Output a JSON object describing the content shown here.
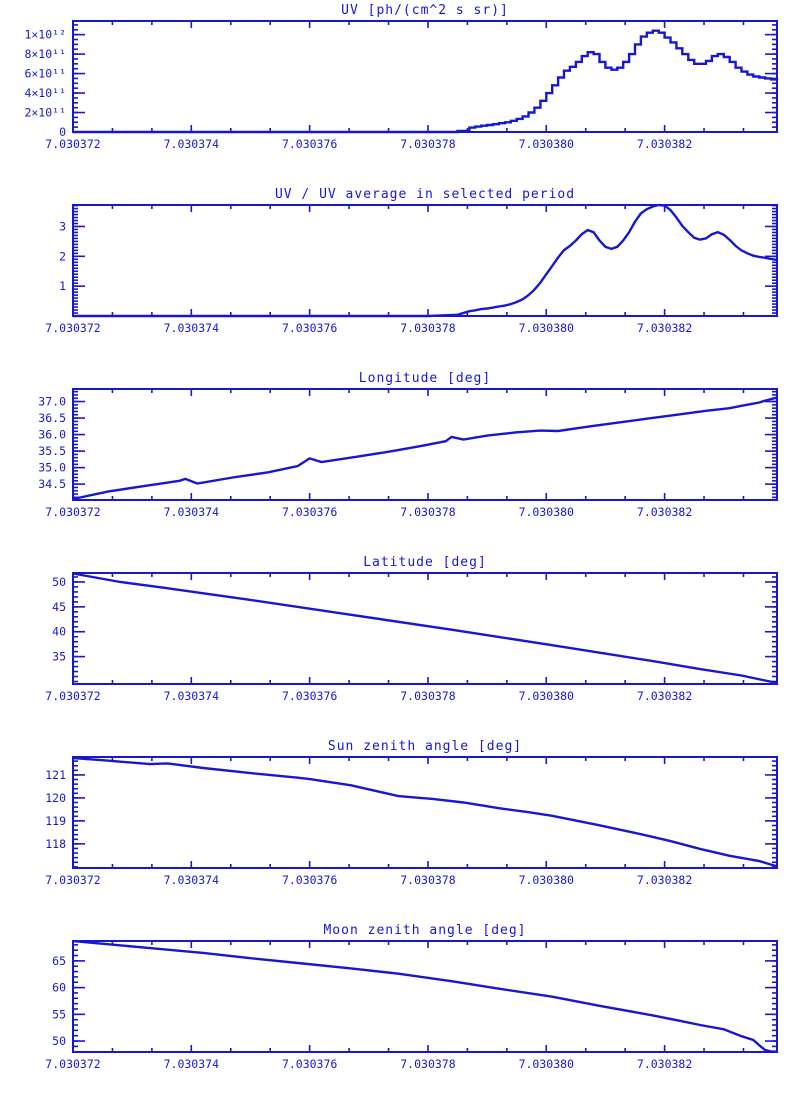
{
  "page": {
    "accent_color": "#1717d2",
    "background_color": "#ffffff"
  },
  "chart_data": {
    "type": "line",
    "accent_color": "#1717d2",
    "grid": false,
    "legend": "none",
    "x_axis": {
      "range": [
        7.030372,
        7.0303839
      ],
      "major_step": 2e-06,
      "minor_per_major": 3,
      "ticks": [
        {
          "v": 7.030372,
          "label": "7.030372"
        },
        {
          "v": 7.030374,
          "label": "7.030374"
        },
        {
          "v": 7.030376,
          "label": "7.030376"
        },
        {
          "v": 7.030378,
          "label": "7.030378"
        },
        {
          "v": 7.03038,
          "label": "7.030380"
        },
        {
          "v": 7.030382,
          "label": "7.030382"
        }
      ]
    },
    "charts": [
      {
        "id": "uv",
        "title": "UV [ph/(cm^2 s sr)]",
        "type": "step",
        "y_range": [
          0,
          1140000000000.0
        ],
        "y_minor_step": 50000000000.0,
        "y_ticks": [
          {
            "v": 0,
            "label": "0"
          },
          {
            "v": 200000000000.0,
            "label": "2×10¹¹"
          },
          {
            "v": 400000000000.0,
            "label": "4×10¹¹"
          },
          {
            "v": 600000000000.0,
            "label": "6×10¹¹"
          },
          {
            "v": 800000000000.0,
            "label": "8×10¹¹"
          },
          {
            "v": 1000000000000.0,
            "label": "1×10¹²"
          }
        ],
        "series": [
          [
            7.030372,
            0
          ],
          [
            7.030378,
            0
          ],
          [
            7.0303785,
            10000000000.0
          ],
          [
            7.0303787,
            45000000000.0
          ],
          [
            7.0303788,
            55000000000.0
          ],
          [
            7.0303789,
            65000000000.0
          ],
          [
            7.030379,
            72000000000.0
          ],
          [
            7.0303791,
            80000000000.0
          ],
          [
            7.0303792,
            90000000000.0
          ],
          [
            7.0303793,
            100000000000.0
          ],
          [
            7.0303794,
            115000000000.0
          ],
          [
            7.0303795,
            135000000000.0
          ],
          [
            7.0303796,
            160000000000.0
          ],
          [
            7.0303797,
            200000000000.0
          ],
          [
            7.0303798,
            250000000000.0
          ],
          [
            7.0303799,
            320000000000.0
          ],
          [
            7.03038,
            400000000000.0
          ],
          [
            7.0303801,
            480000000000.0
          ],
          [
            7.0303802,
            560000000000.0
          ],
          [
            7.0303803,
            630000000000.0
          ],
          [
            7.0303804,
            670000000000.0
          ],
          [
            7.0303805,
            720000000000.0
          ],
          [
            7.0303806,
            780000000000.0
          ],
          [
            7.0303807,
            820000000000.0
          ],
          [
            7.0303808,
            800000000000.0
          ],
          [
            7.0303809,
            720000000000.0
          ],
          [
            7.030381,
            660000000000.0
          ],
          [
            7.0303811,
            640000000000.0
          ],
          [
            7.0303812,
            660000000000.0
          ],
          [
            7.0303813,
            720000000000.0
          ],
          [
            7.0303814,
            800000000000.0
          ],
          [
            7.0303815,
            900000000000.0
          ],
          [
            7.0303816,
            980000000000.0
          ],
          [
            7.0303817,
            1020000000000.0
          ],
          [
            7.0303818,
            1040000000000.0
          ],
          [
            7.0303819,
            1020000000000.0
          ],
          [
            7.030382,
            970000000000.0
          ],
          [
            7.0303821,
            920000000000.0
          ],
          [
            7.0303822,
            860000000000.0
          ],
          [
            7.0303823,
            800000000000.0
          ],
          [
            7.0303824,
            740000000000.0
          ],
          [
            7.0303825,
            700000000000.0
          ],
          [
            7.0303826,
            700000000000.0
          ],
          [
            7.0303827,
            730000000000.0
          ],
          [
            7.0303828,
            780000000000.0
          ],
          [
            7.0303829,
            800000000000.0
          ],
          [
            7.030383,
            770000000000.0
          ],
          [
            7.0303831,
            720000000000.0
          ],
          [
            7.0303832,
            660000000000.0
          ],
          [
            7.0303833,
            620000000000.0
          ],
          [
            7.0303834,
            590000000000.0
          ],
          [
            7.0303835,
            570000000000.0
          ],
          [
            7.0303836,
            560000000000.0
          ],
          [
            7.0303837,
            550000000000.0
          ],
          [
            7.0303838,
            540000000000.0
          ],
          [
            7.0303839,
            530000000000.0
          ]
        ]
      },
      {
        "id": "uv-ratio",
        "title": "UV / UV average in selected period",
        "type": "line",
        "y_range": [
          0,
          3.72
        ],
        "y_minor_step": 0.1,
        "y_ticks": [
          {
            "v": 1,
            "label": "1"
          },
          {
            "v": 2,
            "label": "2"
          },
          {
            "v": 3,
            "label": "3"
          }
        ],
        "series": [
          [
            7.030372,
            0
          ],
          [
            7.030378,
            0
          ],
          [
            7.0303785,
            0.04
          ],
          [
            7.0303787,
            0.16
          ],
          [
            7.0303788,
            0.19
          ],
          [
            7.0303789,
            0.23
          ],
          [
            7.030379,
            0.25
          ],
          [
            7.0303791,
            0.28
          ],
          [
            7.0303792,
            0.32
          ],
          [
            7.0303793,
            0.35
          ],
          [
            7.0303794,
            0.4
          ],
          [
            7.0303795,
            0.47
          ],
          [
            7.0303796,
            0.56
          ],
          [
            7.0303797,
            0.7
          ],
          [
            7.0303798,
            0.88
          ],
          [
            7.0303799,
            1.12
          ],
          [
            7.03038,
            1.4
          ],
          [
            7.0303801,
            1.68
          ],
          [
            7.0303802,
            1.96
          ],
          [
            7.0303803,
            2.21
          ],
          [
            7.0303804,
            2.35
          ],
          [
            7.0303805,
            2.53
          ],
          [
            7.0303806,
            2.74
          ],
          [
            7.0303807,
            2.88
          ],
          [
            7.0303808,
            2.81
          ],
          [
            7.0303809,
            2.53
          ],
          [
            7.030381,
            2.32
          ],
          [
            7.0303811,
            2.25
          ],
          [
            7.0303812,
            2.32
          ],
          [
            7.0303813,
            2.53
          ],
          [
            7.0303814,
            2.81
          ],
          [
            7.0303815,
            3.16
          ],
          [
            7.0303816,
            3.44
          ],
          [
            7.0303817,
            3.58
          ],
          [
            7.0303818,
            3.67
          ],
          [
            7.0303819,
            3.72
          ],
          [
            7.030382,
            3.7
          ],
          [
            7.0303821,
            3.55
          ],
          [
            7.0303822,
            3.3
          ],
          [
            7.0303823,
            3.02
          ],
          [
            7.0303824,
            2.81
          ],
          [
            7.0303825,
            2.62
          ],
          [
            7.0303826,
            2.56
          ],
          [
            7.0303827,
            2.6
          ],
          [
            7.0303828,
            2.74
          ],
          [
            7.0303829,
            2.81
          ],
          [
            7.030383,
            2.72
          ],
          [
            7.0303831,
            2.55
          ],
          [
            7.0303832,
            2.35
          ],
          [
            7.0303833,
            2.2
          ],
          [
            7.0303834,
            2.1
          ],
          [
            7.0303835,
            2.02
          ],
          [
            7.0303836,
            1.98
          ],
          [
            7.0303837,
            1.95
          ],
          [
            7.0303838,
            1.91
          ],
          [
            7.0303839,
            1.88
          ]
        ]
      },
      {
        "id": "longitude",
        "title": "Longitude [deg]",
        "type": "line",
        "y_range": [
          34.02,
          37.38
        ],
        "y_minor_step": 0.1,
        "y_ticks": [
          {
            "v": 34.5,
            "label": "34.5"
          },
          {
            "v": 35.0,
            "label": "35.0"
          },
          {
            "v": 35.5,
            "label": "35.5"
          },
          {
            "v": 36.0,
            "label": "36.0"
          },
          {
            "v": 36.5,
            "label": "36.5"
          },
          {
            "v": 37.0,
            "label": "37.0"
          }
        ],
        "series": [
          [
            7.030372,
            34.05
          ],
          [
            7.0303726,
            34.28
          ],
          [
            7.0303732,
            34.44
          ],
          [
            7.0303738,
            34.6
          ],
          [
            7.0303739,
            34.66
          ],
          [
            7.0303741,
            34.52
          ],
          [
            7.0303747,
            34.7
          ],
          [
            7.0303753,
            34.86
          ],
          [
            7.0303758,
            35.05
          ],
          [
            7.030376,
            35.28
          ],
          [
            7.0303762,
            35.17
          ],
          [
            7.0303768,
            35.33
          ],
          [
            7.0303774,
            35.5
          ],
          [
            7.0303779,
            35.66
          ],
          [
            7.0303783,
            35.8
          ],
          [
            7.0303784,
            35.93
          ],
          [
            7.0303786,
            35.85
          ],
          [
            7.030379,
            35.97
          ],
          [
            7.0303795,
            36.07
          ],
          [
            7.0303799,
            36.12
          ],
          [
            7.0303802,
            36.11
          ],
          [
            7.0303807,
            36.24
          ],
          [
            7.0303812,
            36.36
          ],
          [
            7.0303817,
            36.48
          ],
          [
            7.0303822,
            36.6
          ],
          [
            7.0303827,
            36.72
          ],
          [
            7.0303831,
            36.8
          ],
          [
            7.0303833,
            36.87
          ],
          [
            7.0303836,
            36.97
          ],
          [
            7.0303837,
            37.03
          ],
          [
            7.0303839,
            37.12
          ]
        ]
      },
      {
        "id": "latitude",
        "title": "Latitude [deg]",
        "type": "line",
        "y_range": [
          29.5,
          51.8
        ],
        "y_minor_step": 1,
        "y_ticks": [
          {
            "v": 35,
            "label": "35"
          },
          {
            "v": 40,
            "label": "40"
          },
          {
            "v": 45,
            "label": "45"
          },
          {
            "v": 50,
            "label": "50"
          }
        ],
        "series": [
          [
            7.030372,
            51.7
          ],
          [
            7.0303728,
            50.0
          ],
          [
            7.0303735,
            48.9
          ],
          [
            7.030375,
            46.4
          ],
          [
            7.0303767,
            43.4
          ],
          [
            7.0303784,
            40.4
          ],
          [
            7.0303801,
            37.3
          ],
          [
            7.0303818,
            34.1
          ],
          [
            7.0303826,
            32.5
          ],
          [
            7.0303833,
            31.2
          ],
          [
            7.0303839,
            29.7
          ]
        ]
      },
      {
        "id": "sun-zenith",
        "title": "Sun zenith angle [deg]",
        "type": "line",
        "y_range": [
          116.95,
          121.78
        ],
        "y_minor_step": 0.2,
        "y_ticks": [
          {
            "v": 118,
            "label": "118"
          },
          {
            "v": 119,
            "label": "119"
          },
          {
            "v": 120,
            "label": "120"
          },
          {
            "v": 121,
            "label": "121"
          }
        ],
        "series": [
          [
            7.030372,
            121.73
          ],
          [
            7.0303725,
            121.64
          ],
          [
            7.0303733,
            121.47
          ],
          [
            7.0303736,
            121.5
          ],
          [
            7.0303742,
            121.3
          ],
          [
            7.030375,
            121.08
          ],
          [
            7.0303758,
            120.88
          ],
          [
            7.030376,
            120.82
          ],
          [
            7.0303767,
            120.55
          ],
          [
            7.0303775,
            120.08
          ],
          [
            7.0303781,
            119.95
          ],
          [
            7.0303786,
            119.8
          ],
          [
            7.0303792,
            119.55
          ],
          [
            7.0303797,
            119.38
          ],
          [
            7.0303801,
            119.22
          ],
          [
            7.0303809,
            118.81
          ],
          [
            7.0303816,
            118.42
          ],
          [
            7.0303821,
            118.12
          ],
          [
            7.0303826,
            117.78
          ],
          [
            7.0303831,
            117.48
          ],
          [
            7.0303836,
            117.25
          ],
          [
            7.0303839,
            117.02
          ]
        ]
      },
      {
        "id": "moon-zenith",
        "title": "Moon zenith angle [deg]",
        "type": "line",
        "y_range": [
          47.95,
          68.72
        ],
        "y_minor_step": 1,
        "y_ticks": [
          {
            "v": 50,
            "label": "50"
          },
          {
            "v": 55,
            "label": "55"
          },
          {
            "v": 60,
            "label": "60"
          },
          {
            "v": 65,
            "label": "65"
          }
        ],
        "series": [
          [
            7.030372,
            68.7
          ],
          [
            7.0303733,
            67.4
          ],
          [
            7.0303742,
            66.5
          ],
          [
            7.030375,
            65.5
          ],
          [
            7.0303758,
            64.6
          ],
          [
            7.0303767,
            63.6
          ],
          [
            7.0303775,
            62.6
          ],
          [
            7.0303784,
            61.2
          ],
          [
            7.0303792,
            59.8
          ],
          [
            7.0303801,
            58.3
          ],
          [
            7.0303809,
            56.6
          ],
          [
            7.0303818,
            54.8
          ],
          [
            7.0303823,
            53.7
          ],
          [
            7.0303826,
            53.0
          ],
          [
            7.030383,
            52.2
          ],
          [
            7.0303833,
            50.9
          ],
          [
            7.0303835,
            50.2
          ],
          [
            7.0303836,
            49.2
          ],
          [
            7.0303837,
            48.3
          ],
          [
            7.0303838,
            48.05
          ],
          [
            7.0303839,
            48.0
          ]
        ]
      }
    ]
  }
}
